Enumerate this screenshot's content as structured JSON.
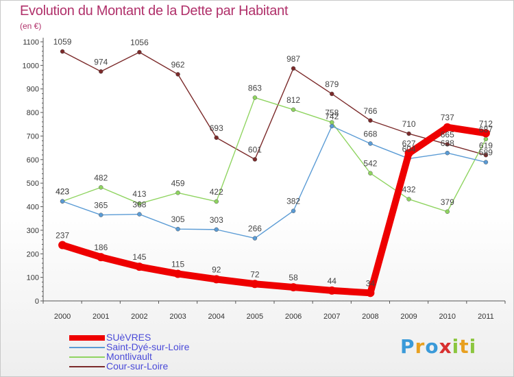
{
  "header": {
    "title": "Evolution du Montant de la Dette par Habitant",
    "subtitle": "(en €)"
  },
  "logo": {
    "letters": [
      "P",
      "r",
      "o",
      "x",
      "i",
      "t",
      "i"
    ],
    "colors": [
      "#3a9ad9",
      "#e8a020",
      "#3a9ad9",
      "#d83030",
      "#8cc63f",
      "#e8a020",
      "#8cc63f"
    ]
  },
  "chart_data": {
    "type": "line",
    "title": "Evolution du Montant de la Dette par Habitant",
    "subtitle": "(en €)",
    "categories": [
      "2000",
      "2001",
      "2002",
      "2003",
      "2004",
      "2005",
      "2006",
      "2007",
      "2008",
      "2009",
      "2010",
      "2011"
    ],
    "ylim": [
      0,
      1100
    ],
    "yticks": [
      0,
      100,
      200,
      300,
      400,
      500,
      600,
      700,
      800,
      900,
      1000,
      1100
    ],
    "grid": false,
    "legend_position": "bottom-left",
    "series": [
      {
        "name": "SUèVRES",
        "color": "#ee0000",
        "values": [
          237,
          186,
          145,
          115,
          92,
          72,
          58,
          44,
          34,
          627,
          737,
          712
        ]
      },
      {
        "name": "Saint-Dyé-sur-Loire",
        "color": "#5a9bd5",
        "values": [
          423,
          365,
          368,
          305,
          303,
          266,
          382,
          742,
          668,
          604,
          628,
          589
        ]
      },
      {
        "name": "Montlivault",
        "color": "#8fd460",
        "values": [
          423,
          482,
          413,
          459,
          422,
          863,
          812,
          758,
          542,
          432,
          379,
          687
        ]
      },
      {
        "name": "Cour-sur-Loire",
        "color": "#7b2a2a",
        "values": [
          1059,
          974,
          1056,
          962,
          693,
          601,
          987,
          879,
          766,
          710,
          665,
          619
        ]
      }
    ]
  }
}
